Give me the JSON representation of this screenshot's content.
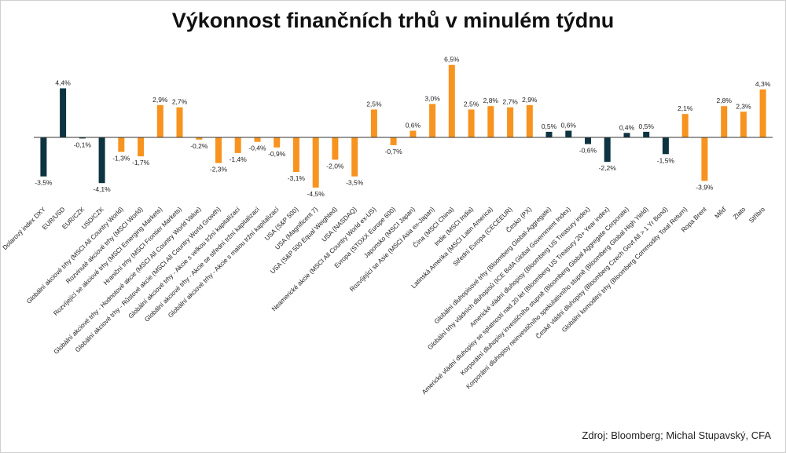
{
  "chart_data": {
    "type": "bar",
    "title": "Výkonnost finančních trhů v minulém týdnu",
    "unit_suffix": "%",
    "decimal_separator": ",",
    "ylim": [
      -5,
      7
    ],
    "grid": false,
    "legend": "none",
    "colors": {
      "dark": "#0d3440",
      "orange": "#f7931e",
      "zero_line": "#333333"
    },
    "categories": [
      "Dolarový index DXY",
      "EUR/USD",
      "EUR/CZK",
      "USD/CZK",
      "Globální akciové trhy (MSCI All Country World)",
      "Rozvinuté akciové trhy (MSCI World)",
      "Rozvíjející se akciové trhy (MSCI Emerging Markets)",
      "Hraniční trhy (MSCI Frontier Markets)",
      "Globální akciové trhy - Hodnotové akcie (MSCI All Country World Value)",
      "Globální akciové trhy - Růstové akcie (MSCI All Country World Growth)",
      "Globální akciové trhy - Akcie s velkou tržní kapitalizací",
      "Globální akciové trhy - Akcie se střední tržní kapitalizací",
      "Globální akciové trhy - Akcie s malou tržní kapitalizací",
      "USA (S&P 500)",
      "USA (Magnificent 7)",
      "USA (S&P 500 Equal Weighted)",
      "USA (NASDAQ)",
      "Neamerické akcie (MSCI All Country World ex-US)",
      "Evropa (STOXX Europe 600)",
      "Japonsko (MSCI Japan)",
      "Rozvíjející se Asie (MSCI Asia ex-Japan)",
      "Čína (MSCI China)",
      "Indie (MSCI India)",
      "Latinská Amerika (MSCI Latin America)",
      "Střední Evropa (CECEEUR)",
      "Česko (PX)",
      "Globální dluhopisové trhy (Bloomberg Global-Aggregate)",
      "Globální trhy vládních dluhopisů (ICE BofA Global Government Index)",
      "Americké vládní dluhopisy (Bloomberg US Treasury index)",
      "Americké vládní dluhopisy se splatností nad 20 let (Bloomberg US Treasury 20+ Year index)",
      "Korporátní dluhopisy investičního stupně (Bloomberg Global Aggregate Corporate)",
      "Korporátní dluhopisy neinvestičního spekulativního stupně (Bloomberg Global High Yield)",
      "České vládní dluhopisy (Bloomberg Czech Govt All > 1 Yr Bond)",
      "Globální komoditní trhy (Bloomberg Commodity Total Return)",
      "Ropa Brent",
      "Měď",
      "Zlato",
      "Stříbro"
    ],
    "values": [
      -3.5,
      4.4,
      -0.1,
      -4.1,
      -1.3,
      -1.7,
      2.9,
      2.7,
      -0.2,
      -2.3,
      -1.4,
      -0.4,
      -0.9,
      -3.1,
      -4.5,
      -2.0,
      -3.5,
      2.5,
      -0.7,
      0.6,
      3.0,
      6.5,
      2.5,
      2.8,
      2.7,
      2.9,
      0.5,
      0.6,
      -0.6,
      -2.2,
      0.4,
      0.5,
      -1.5,
      2.1,
      -3.9,
      2.8,
      2.3,
      4.3
    ],
    "bar_colors": [
      "dark",
      "dark",
      "dark",
      "dark",
      "orange",
      "orange",
      "orange",
      "orange",
      "orange",
      "orange",
      "orange",
      "orange",
      "orange",
      "orange",
      "orange",
      "orange",
      "orange",
      "orange",
      "orange",
      "orange",
      "orange",
      "orange",
      "orange",
      "orange",
      "orange",
      "orange",
      "dark",
      "dark",
      "dark",
      "dark",
      "dark",
      "dark",
      "dark",
      "orange",
      "orange",
      "orange",
      "orange",
      "orange"
    ]
  },
  "source": "Zdroj: Bloomberg; Michal Stupavský, CFA"
}
